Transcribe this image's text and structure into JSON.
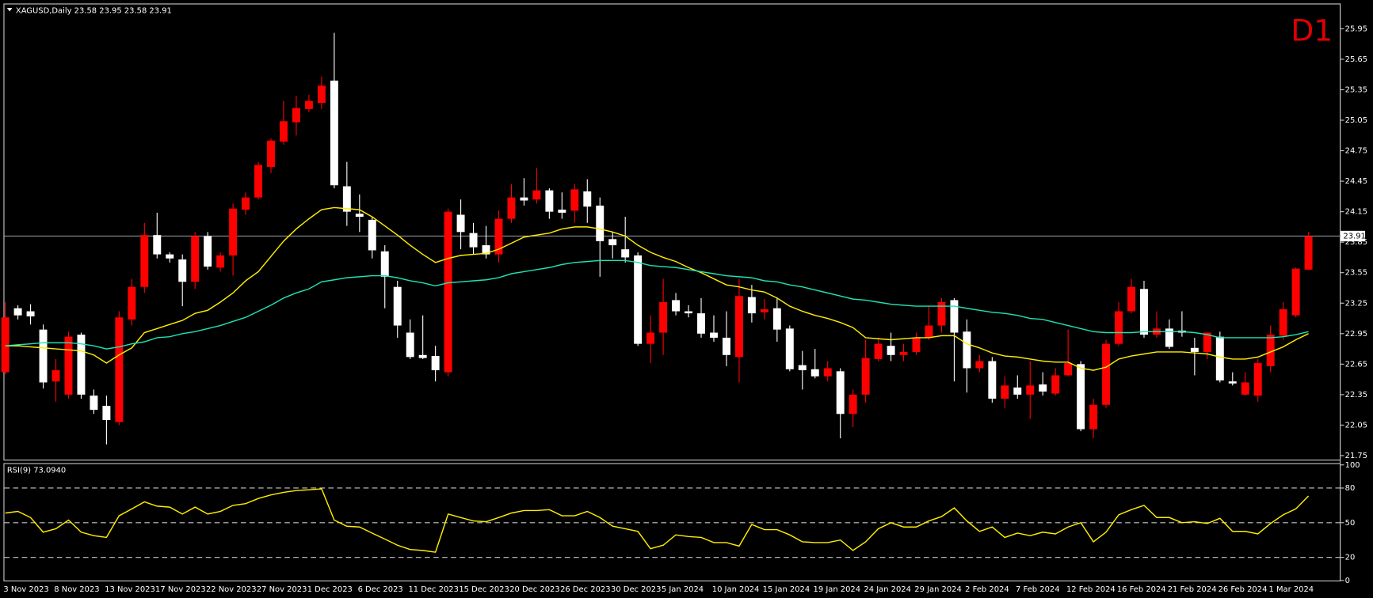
{
  "chart_data": [
    {
      "type": "candlestick",
      "title": "XAGUSD,Daily  23.58 23.95 23.58 23.91",
      "label": "D1",
      "categories": [
        "3 Nov 2023",
        null,
        null,
        null,
        "8 Nov 2023",
        null,
        null,
        null,
        "13 Nov 2023",
        null,
        null,
        null,
        "17 Nov 2023",
        null,
        null,
        null,
        "22 Nov 2023",
        null,
        null,
        null,
        "27 Nov 2023",
        null,
        null,
        null,
        "1 Dec 2023",
        null,
        null,
        null,
        "6 Dec 2023",
        null,
        null,
        null,
        "11 Dec 2023",
        null,
        null,
        null,
        "15 Dec 2023",
        null,
        null,
        null,
        "20 Dec 2023",
        null,
        null,
        null,
        "26 Dec 2023",
        null,
        null,
        null,
        "30 Dec 2023",
        null,
        null,
        null,
        "5 Jan 2024",
        null,
        null,
        null,
        "10 Jan 2024",
        null,
        null,
        null,
        "15 Jan 2024",
        null,
        null,
        null,
        "19 Jan 2024",
        null,
        null,
        null,
        "24 Jan 2024",
        null,
        null,
        null,
        "29 Jan 2024",
        null,
        null,
        null,
        "2 Feb 2024",
        null,
        null,
        null,
        "7 Feb 2024",
        null,
        null,
        null,
        "12 Feb 2024",
        null,
        null,
        null,
        "16 Feb 2024",
        null,
        null,
        null,
        "21 Feb 2024",
        null,
        null,
        null,
        "26 Feb 2024",
        null,
        null,
        null,
        "1 Mar 2024",
        null,
        null,
        null
      ],
      "open": [
        22.57,
        23.2,
        23.17,
        22.99,
        22.48,
        22.35,
        22.94,
        22.34,
        22.24,
        22.08,
        23.09,
        23.41,
        23.92,
        23.73,
        23.68,
        23.46,
        23.91,
        23.6,
        23.72,
        24.17,
        24.29,
        24.59,
        24.84,
        25.03,
        25.16,
        25.22,
        25.44,
        24.4,
        24.13,
        24.07,
        23.76,
        23.41,
        22.96,
        22.74,
        22.73,
        22.57,
        24.12,
        23.94,
        23.82,
        23.73,
        24.08,
        24.29,
        24.27,
        24.36,
        24.17,
        24.16,
        24.35,
        24.21,
        23.88,
        23.78,
        23.72,
        22.85,
        22.96,
        23.28,
        23.17,
        23.15,
        22.96,
        22.91,
        22.72,
        23.31,
        23.16,
        23.2,
        23.0,
        22.64,
        22.6,
        22.53,
        22.58,
        22.16,
        22.35,
        22.7,
        22.83,
        22.74,
        22.77,
        22.91,
        23.03,
        23.28,
        22.97,
        22.61,
        22.68,
        22.31,
        22.42,
        22.35,
        22.45,
        22.36,
        22.54,
        22.65,
        22.01,
        22.25,
        22.85,
        23.17,
        23.39,
        22.94,
        23.0,
        22.98,
        22.81,
        22.77,
        22.92,
        22.48,
        22.35,
        22.34,
        22.63,
        22.93,
        23.13,
        23.58
      ],
      "high": [
        23.26,
        23.23,
        23.24,
        23.04,
        22.7,
        22.97,
        22.96,
        22.4,
        22.34,
        23.17,
        23.49,
        24.04,
        24.14,
        23.75,
        23.73,
        23.95,
        23.95,
        23.75,
        24.23,
        24.34,
        24.64,
        24.87,
        25.24,
        25.29,
        25.3,
        25.48,
        25.91,
        24.64,
        24.32,
        24.1,
        23.82,
        23.47,
        23.09,
        23.13,
        22.83,
        24.18,
        24.27,
        24.04,
        24.01,
        24.16,
        24.42,
        24.48,
        24.58,
        24.38,
        24.34,
        24.42,
        24.47,
        24.29,
        23.95,
        24.1,
        23.75,
        23.13,
        23.49,
        23.35,
        23.23,
        23.3,
        23.13,
        23.17,
        23.49,
        23.43,
        23.29,
        23.3,
        23.03,
        22.78,
        22.8,
        22.68,
        22.61,
        22.4,
        22.89,
        22.91,
        22.96,
        22.85,
        22.96,
        23.22,
        23.3,
        23.3,
        23.09,
        22.74,
        22.72,
        22.53,
        22.54,
        22.68,
        22.57,
        22.61,
        22.99,
        22.68,
        22.31,
        22.89,
        23.26,
        23.49,
        23.47,
        23.17,
        23.09,
        23.17,
        22.91,
        22.96,
        22.97,
        22.57,
        22.57,
        22.7,
        23.03,
        23.26,
        23.6,
        23.95
      ],
      "low": [
        22.55,
        23.09,
        23.04,
        22.41,
        22.28,
        22.31,
        22.31,
        22.16,
        21.86,
        22.05,
        23.03,
        23.35,
        23.69,
        23.65,
        23.22,
        23.39,
        23.58,
        23.56,
        23.52,
        24.12,
        24.27,
        24.53,
        24.81,
        24.9,
        25.13,
        25.16,
        24.38,
        24.01,
        23.95,
        23.69,
        23.2,
        22.91,
        22.7,
        22.7,
        22.48,
        22.53,
        23.78,
        23.73,
        23.69,
        23.65,
        24.04,
        24.21,
        24.23,
        24.08,
        24.08,
        24.04,
        24.04,
        23.51,
        23.69,
        23.65,
        22.83,
        22.66,
        22.74,
        23.13,
        23.11,
        22.91,
        22.87,
        22.63,
        22.47,
        23.06,
        23.09,
        22.87,
        22.58,
        22.4,
        22.51,
        22.48,
        21.92,
        22.03,
        22.27,
        22.68,
        22.68,
        22.68,
        22.74,
        22.89,
        22.96,
        22.48,
        22.37,
        22.57,
        22.27,
        22.22,
        22.31,
        22.11,
        22.34,
        22.34,
        22.53,
        21.99,
        21.92,
        22.22,
        22.83,
        23.15,
        22.91,
        22.91,
        22.8,
        22.92,
        22.54,
        22.7,
        22.47,
        22.44,
        22.34,
        22.28,
        22.57,
        22.89,
        23.11,
        23.58
      ],
      "close": [
        23.11,
        23.13,
        23.12,
        22.47,
        22.59,
        22.92,
        22.35,
        22.2,
        22.1,
        23.11,
        23.41,
        23.92,
        23.73,
        23.69,
        23.46,
        23.91,
        23.61,
        23.72,
        24.18,
        24.29,
        24.61,
        24.85,
        25.04,
        25.17,
        25.24,
        25.39,
        24.41,
        24.15,
        24.1,
        23.77,
        23.51,
        23.03,
        22.72,
        22.71,
        22.59,
        24.15,
        23.95,
        23.8,
        23.73,
        24.08,
        24.29,
        24.26,
        24.36,
        24.15,
        24.14,
        24.37,
        24.2,
        23.86,
        23.82,
        23.7,
        22.85,
        22.96,
        23.26,
        23.17,
        23.15,
        22.95,
        22.91,
        22.74,
        23.32,
        23.15,
        23.19,
        22.99,
        22.6,
        22.59,
        22.53,
        22.61,
        22.16,
        22.35,
        22.71,
        22.85,
        22.74,
        22.77,
        22.91,
        23.03,
        23.26,
        22.96,
        22.61,
        22.68,
        22.31,
        22.44,
        22.35,
        22.44,
        22.38,
        22.54,
        22.66,
        22.01,
        22.25,
        22.85,
        23.17,
        23.41,
        22.94,
        23.0,
        22.82,
        22.96,
        22.77,
        22.96,
        22.49,
        22.46,
        22.47,
        22.66,
        22.94,
        23.19,
        23.59,
        23.91
      ],
      "up_color": "#ff0000",
      "down_color": "#ffffff",
      "series": [
        {
          "color": "#ffee00",
          "values": [
            22.83,
            22.83,
            22.82,
            22.81,
            22.8,
            22.79,
            22.78,
            22.74,
            22.66,
            22.74,
            22.81,
            22.96,
            23.0,
            23.04,
            23.08,
            23.15,
            23.18,
            23.26,
            23.35,
            23.47,
            23.56,
            23.71,
            23.86,
            23.98,
            24.08,
            24.17,
            24.19,
            24.18,
            24.17,
            24.1,
            24.01,
            23.92,
            23.82,
            23.73,
            23.65,
            23.69,
            23.72,
            23.73,
            23.74,
            23.78,
            23.84,
            23.9,
            23.92,
            23.94,
            23.98,
            24.0,
            24.0,
            23.98,
            23.95,
            23.91,
            23.82,
            23.75,
            23.7,
            23.66,
            23.6,
            23.55,
            23.49,
            23.43,
            23.41,
            23.38,
            23.36,
            23.3,
            23.22,
            23.17,
            23.13,
            23.1,
            23.06,
            23.01,
            22.91,
            22.9,
            22.89,
            22.9,
            22.91,
            22.91,
            22.93,
            22.93,
            22.85,
            22.81,
            22.76,
            22.73,
            22.72,
            22.7,
            22.68,
            22.67,
            22.67,
            22.61,
            22.59,
            22.62,
            22.7,
            22.73,
            22.75,
            22.77,
            22.77,
            22.77,
            22.76,
            22.75,
            22.72,
            22.7,
            22.7,
            22.72,
            22.77,
            22.82,
            22.89,
            22.95
          ]
        },
        {
          "color": "#1ee3b4",
          "values": [
            22.83,
            22.84,
            22.85,
            22.86,
            22.86,
            22.86,
            22.85,
            22.83,
            22.8,
            22.82,
            22.85,
            22.87,
            22.91,
            22.92,
            22.95,
            22.97,
            23.0,
            23.03,
            23.07,
            23.11,
            23.17,
            23.23,
            23.3,
            23.35,
            23.39,
            23.46,
            23.48,
            23.5,
            23.51,
            23.52,
            23.52,
            23.5,
            23.47,
            23.45,
            23.42,
            23.45,
            23.46,
            23.47,
            23.48,
            23.5,
            23.54,
            23.56,
            23.58,
            23.6,
            23.63,
            23.65,
            23.66,
            23.67,
            23.67,
            23.67,
            23.65,
            23.62,
            23.61,
            23.6,
            23.58,
            23.56,
            23.54,
            23.52,
            23.51,
            23.5,
            23.47,
            23.46,
            23.43,
            23.41,
            23.38,
            23.35,
            23.32,
            23.29,
            23.28,
            23.26,
            23.24,
            23.23,
            23.22,
            23.22,
            23.22,
            23.22,
            23.2,
            23.18,
            23.16,
            23.15,
            23.13,
            23.1,
            23.09,
            23.06,
            23.03,
            23.0,
            22.97,
            22.96,
            22.96,
            22.96,
            22.97,
            22.97,
            22.97,
            22.97,
            22.96,
            22.94,
            22.91,
            22.91,
            22.91,
            22.91,
            22.91,
            22.92,
            22.94,
            22.97
          ]
        }
      ],
      "last_price": 23.91,
      "ylim": [
        21.71,
        26.19
      ],
      "yticks": [
        21.75,
        22.05,
        22.35,
        22.65,
        22.95,
        23.25,
        23.55,
        23.85,
        24.15,
        24.45,
        24.75,
        25.05,
        25.35,
        25.65,
        25.95
      ]
    },
    {
      "type": "line",
      "title": "RSI(9) 73.0940",
      "color": "#ffee00",
      "values": [
        58.3,
        59.8,
        54.5,
        41.8,
        44.8,
        52.3,
        41.8,
        38.8,
        37.3,
        56.0,
        62.0,
        68.0,
        64.3,
        63.5,
        57.5,
        63.5,
        57.5,
        59.8,
        65.0,
        66.5,
        71.0,
        74.0,
        76.3,
        77.8,
        78.5,
        79.3,
        52.3,
        47.0,
        46.3,
        41.0,
        35.8,
        30.5,
        26.8,
        26.0,
        24.5,
        57.5,
        54.5,
        51.5,
        50.8,
        54.5,
        58.3,
        60.5,
        60.5,
        61.3,
        56.0,
        56.0,
        59.8,
        54.5,
        47.0,
        44.8,
        42.5,
        27.5,
        30.5,
        39.5,
        38.0,
        37.3,
        32.8,
        32.8,
        29.8,
        48.5,
        44.0,
        44.0,
        39.5,
        33.5,
        32.8,
        32.8,
        35.0,
        26.0,
        33.5,
        44.8,
        50.0,
        46.3,
        46.3,
        51.5,
        55.3,
        62.8,
        51.5,
        42.5,
        46.3,
        37.3,
        41.0,
        38.8,
        41.8,
        40.3,
        46.3,
        50.0,
        33.5,
        41.8,
        56.8,
        61.3,
        65.0,
        54.5,
        54.5,
        50.0,
        50.8,
        49.3,
        53.8,
        42.5,
        42.5,
        40.3,
        49.3,
        56.8,
        62.0,
        73.094
      ],
      "ylim": [
        0,
        100
      ],
      "yticks": [
        0,
        20,
        50,
        80,
        100
      ]
    }
  ]
}
